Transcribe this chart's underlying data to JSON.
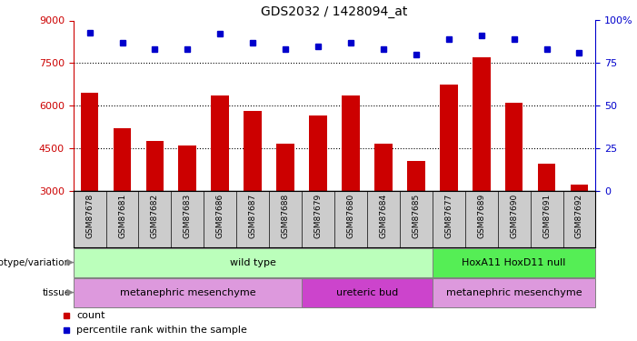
{
  "title": "GDS2032 / 1428094_at",
  "samples": [
    "GSM87678",
    "GSM87681",
    "GSM87682",
    "GSM87683",
    "GSM87686",
    "GSM87687",
    "GSM87688",
    "GSM87679",
    "GSM87680",
    "GSM87684",
    "GSM87685",
    "GSM87677",
    "GSM87689",
    "GSM87690",
    "GSM87691",
    "GSM87692"
  ],
  "counts": [
    6450,
    5200,
    4750,
    4600,
    6350,
    5800,
    4650,
    5650,
    6350,
    4650,
    4050,
    6750,
    7700,
    6100,
    3950,
    3200
  ],
  "percentiles": [
    93,
    87,
    83,
    83,
    92,
    87,
    83,
    85,
    87,
    83,
    80,
    89,
    91,
    89,
    83,
    81
  ],
  "ymin": 3000,
  "ymax": 9000,
  "yticks": [
    3000,
    4500,
    6000,
    7500,
    9000
  ],
  "ytick_labels": [
    "3000",
    "4500",
    "6000",
    "7500",
    "9000"
  ],
  "right_yticks": [
    0,
    25,
    50,
    75,
    100
  ],
  "right_ytick_labels": [
    "0",
    "25",
    "50",
    "75",
    "100%"
  ],
  "bar_color": "#cc0000",
  "dot_color": "#0000cc",
  "genotype_labels": [
    {
      "text": "wild type",
      "start": 0,
      "end": 10,
      "color": "#bbffbb"
    },
    {
      "text": "HoxA11 HoxD11 null",
      "start": 11,
      "end": 15,
      "color": "#55ee55"
    }
  ],
  "tissue_labels": [
    {
      "text": "metanephric mesenchyme",
      "start": 0,
      "end": 6,
      "color": "#dd99dd"
    },
    {
      "text": "ureteric bud",
      "start": 7,
      "end": 10,
      "color": "#cc44cc"
    },
    {
      "text": "metanephric mesenchyme",
      "start": 11,
      "end": 15,
      "color": "#dd99dd"
    }
  ],
  "genotype_row_label": "genotype/variation",
  "tissue_row_label": "tissue",
  "legend_count_color": "#cc0000",
  "legend_pct_color": "#0000cc",
  "xtick_bg_color": "#cccccc"
}
